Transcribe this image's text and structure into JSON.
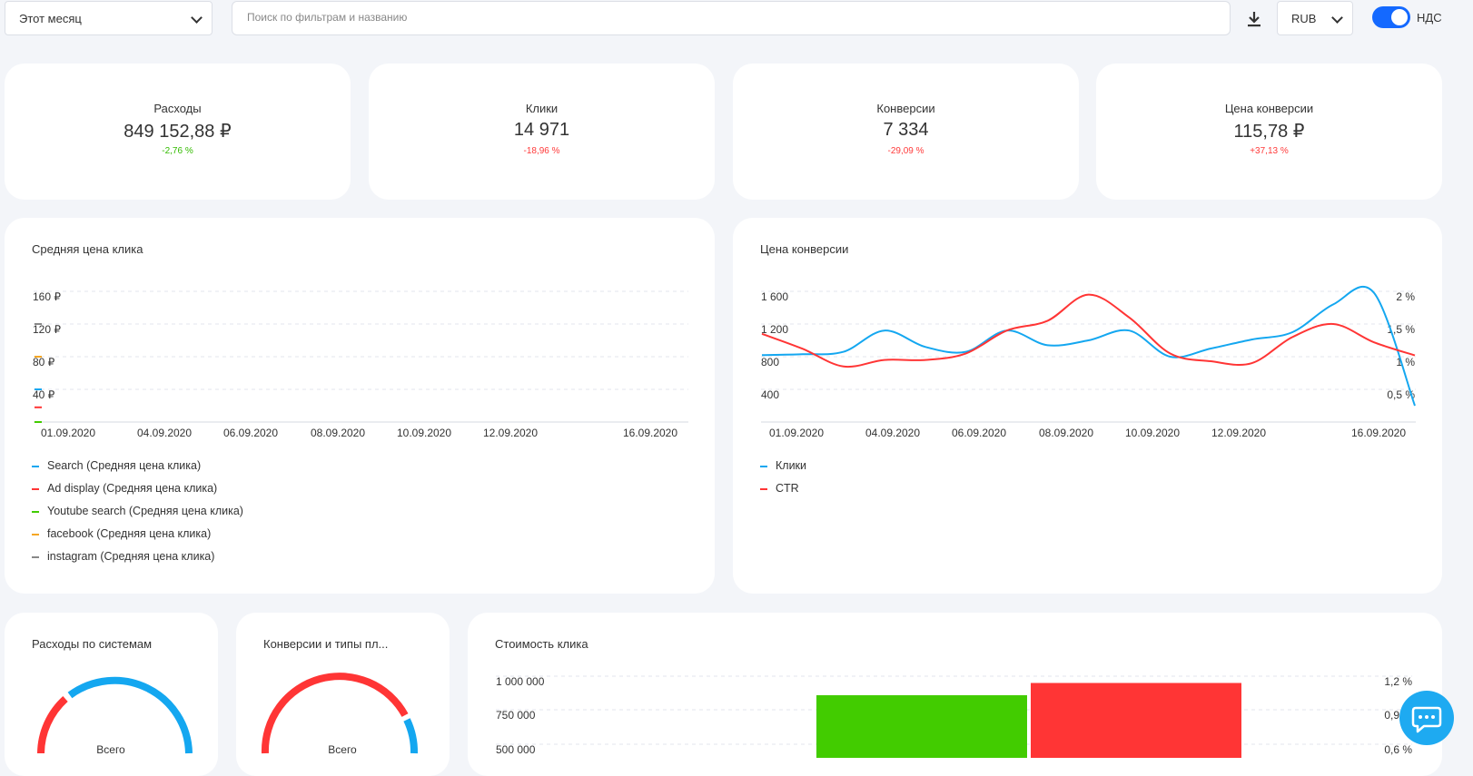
{
  "toolbar": {
    "period": "Этот месяц",
    "search_placeholder": "Поиск по фильтрам и названию",
    "currency": "RUB",
    "vat_label": "НДС",
    "vat_enabled": true
  },
  "colors": {
    "positive": "#33bb00",
    "negative": "#ff3b3b",
    "accent": "#1469ff",
    "blue": "#14a7f0",
    "red": "#ff3535",
    "green": "#42cc00",
    "orange": "#f5a623",
    "gray": "#888888"
  },
  "kpis": [
    {
      "title": "Расходы",
      "value": "849 152,88 ₽",
      "delta": "-2,76 %",
      "trend": "positive"
    },
    {
      "title": "Клики",
      "value": "14 971",
      "delta": "-18,96 %",
      "trend": "negative"
    },
    {
      "title": "Конверсии",
      "value": "7 334",
      "delta": "-29,09 %",
      "trend": "negative"
    },
    {
      "title": "Цена конверсии",
      "value": "115,78 ₽",
      "delta": "+37,13 %",
      "trend": "negative"
    }
  ],
  "chart_data": [
    {
      "type": "line",
      "title": "Средняя цена клика",
      "y_ticks": [
        "160 ₽",
        "120 ₽",
        "80 ₽",
        "40 ₽"
      ],
      "x_ticks": [
        "01.09.2020",
        "04.09.2020",
        "06.09.2020",
        "08.09.2020",
        "10.09.2020",
        "12.09.2020",
        "16.09.2020"
      ],
      "ylim": [
        0,
        160
      ],
      "series": [
        {
          "name": "Search (Средняя цена клика)",
          "color": "#14a7f0",
          "values": [
            40
          ]
        },
        {
          "name": "Ad display (Средняя цена клика)",
          "color": "#ff3535",
          "values": [
            18
          ]
        },
        {
          "name": "Youtube search (Средняя цена клика)",
          "color": "#42cc00",
          "values": [
            0
          ]
        },
        {
          "name": "facebook (Средняя цена клика)",
          "color": "#f5a623",
          "values": [
            80
          ]
        },
        {
          "name": "instagram (Средняя цена клика)",
          "color": "#888888",
          "values": [
            120
          ]
        }
      ]
    },
    {
      "type": "line",
      "title": "Цена конверсии",
      "y_ticks": [
        "1 600",
        "1 200",
        "800",
        "400"
      ],
      "y2_ticks": [
        "2 %",
        "1,5 %",
        "1 %",
        "0,5 %"
      ],
      "x_ticks": [
        "01.09.2020",
        "04.09.2020",
        "06.09.2020",
        "08.09.2020",
        "10.09.2020",
        "12.09.2020",
        "16.09.2020"
      ],
      "ylim": [
        0,
        1600
      ],
      "y2lim": [
        0,
        2
      ],
      "x": [
        "01.09.2020",
        "02.09.2020",
        "03.09.2020",
        "04.09.2020",
        "05.09.2020",
        "06.09.2020",
        "07.09.2020",
        "08.09.2020",
        "09.09.2020",
        "10.09.2020",
        "11.09.2020",
        "12.09.2020",
        "13.09.2020",
        "14.09.2020",
        "15.09.2020",
        "16.09.2020",
        "16.09.2020 "
      ],
      "series": [
        {
          "name": "Клики",
          "color": "#14a7f0",
          "axis": "left",
          "values": [
            820,
            830,
            860,
            1120,
            920,
            860,
            1120,
            940,
            1000,
            1120,
            800,
            900,
            1010,
            1100,
            1440,
            1580,
            200
          ]
        },
        {
          "name": "CTR",
          "color": "#ff3535",
          "axis": "right",
          "values": [
            1.35,
            1.12,
            0.85,
            0.95,
            0.95,
            1.05,
            1.4,
            1.55,
            1.95,
            1.6,
            1.05,
            0.93,
            0.9,
            1.3,
            1.5,
            1.22,
            1.02
          ]
        }
      ]
    },
    {
      "type": "bar",
      "title": "Стоимость клика",
      "y_ticks": [
        "1 000 000",
        "750 000",
        "500 000"
      ],
      "y2_ticks": [
        "1,2 %",
        "0,9 %",
        "0,6 %"
      ],
      "categories": [
        "",
        ""
      ],
      "values": [
        860000,
        950000
      ],
      "colors": [
        "#42cc00",
        "#ff3535"
      ]
    }
  ],
  "donuts": [
    {
      "title": "Расходы по системам",
      "center_label": "Всего"
    },
    {
      "title": "Конверсии и типы пл...",
      "center_label": "Всего"
    }
  ]
}
